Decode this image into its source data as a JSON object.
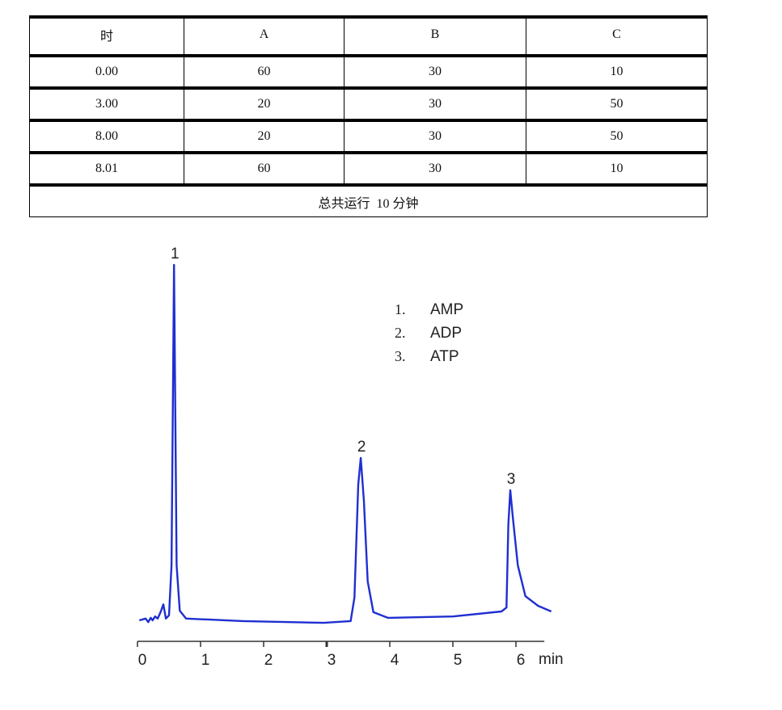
{
  "table": {
    "headers": [
      "时",
      "A",
      "B",
      "C"
    ],
    "rows": [
      [
        "0.00",
        "60",
        "30",
        "10"
      ],
      [
        "3.00",
        "20",
        "30",
        "50"
      ],
      [
        "8.00",
        "20",
        "30",
        "50"
      ],
      [
        "8.01",
        "60",
        "30",
        "10"
      ]
    ],
    "footer": "总共运行  10 分钟"
  },
  "chart_data": {
    "type": "line",
    "xlabel": "min",
    "x_ticks": [
      "0",
      "1",
      "2",
      "3",
      "4",
      "5",
      "6"
    ],
    "xlim": [
      0,
      6.45
    ],
    "y_axis_shown": false,
    "line_color": "#1f2fd0",
    "peak_labels": [
      {
        "label": "1",
        "x": 0.58,
        "y": 100
      },
      {
        "label": "2",
        "x": 3.54,
        "y": 45.7
      },
      {
        "label": "3",
        "x": 5.91,
        "y": 36.6
      }
    ],
    "legend": [
      "1.  AMP",
      "2.  ADP",
      "3.  ATP"
    ],
    "legend_placement": "top-right",
    "series": [
      {
        "x": [
          0.03,
          0.13,
          0.17,
          0.21,
          0.24,
          0.28,
          0.32,
          0.37,
          0.41,
          0.45,
          0.5,
          0.54,
          0.58,
          0.62,
          0.67,
          0.77,
          1.67,
          2.95,
          3.38,
          3.44,
          3.5,
          3.54,
          3.59,
          3.65,
          3.74,
          3.97,
          5.0,
          5.77,
          5.85,
          5.88,
          5.91,
          5.95,
          6.03,
          6.15,
          6.35,
          6.56
        ],
        "y": [
          0,
          0.5,
          -0.5,
          0.7,
          0,
          1.1,
          0.5,
          2.5,
          4.5,
          0.5,
          1.4,
          15.5,
          100,
          15.5,
          2.7,
          0.5,
          -0.2,
          -0.7,
          -0.2,
          6.4,
          38.2,
          45.7,
          33.6,
          10.9,
          2.3,
          0.7,
          1.1,
          2.5,
          3.6,
          26.8,
          36.6,
          29.1,
          15.5,
          6.8,
          4.1,
          2.5
        ]
      }
    ]
  }
}
